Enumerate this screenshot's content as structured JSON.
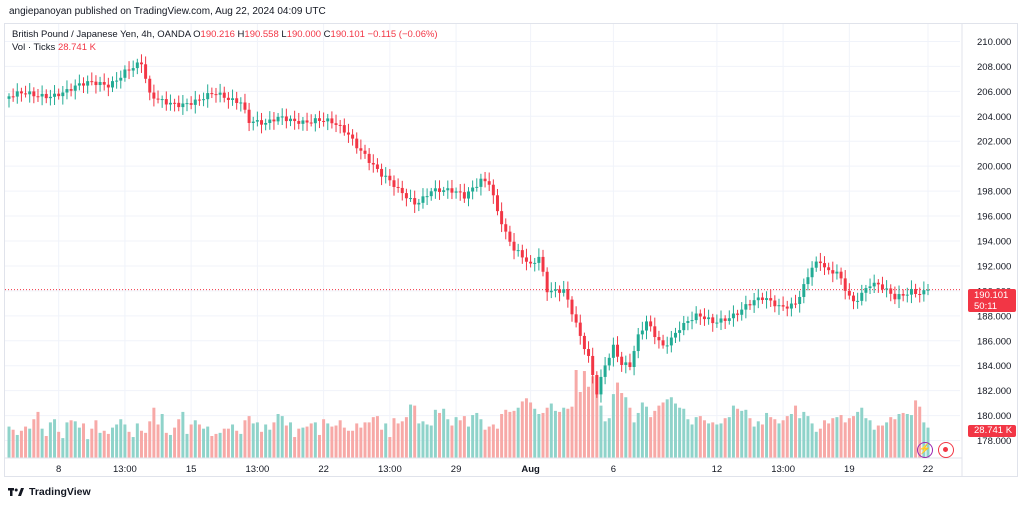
{
  "header": {
    "published": "angiepanoyan published on TradingView.com, Aug 22, 2024 04:09 UTC"
  },
  "legend": {
    "symbol": "British Pound / Japanese Yen, 4h, OANDA",
    "o_label": "O",
    "o_value": "190.216",
    "h_label": "H",
    "h_value": "190.558",
    "l_label": "L",
    "l_value": "190.000",
    "c_label": "C",
    "c_value": "190.101",
    "change": "−0.115 (−0.06%)",
    "vol_label": "Vol · Ticks",
    "vol_value": "28.741 K"
  },
  "price_tag": {
    "price": "190.101",
    "countdown": "50:11"
  },
  "vol_tag": "28.741 K",
  "footer": {
    "brand": "TradingView"
  },
  "colors": {
    "up": "#22ab94",
    "down": "#f23645",
    "vol_up": "#8fd3ca",
    "vol_down": "#f7a9a7",
    "grid": "#f0f3fa",
    "axis_text": "#131722"
  },
  "chart_data": {
    "type": "candlestick",
    "ylim": [
      176.6,
      211.4
    ],
    "y_ticks": [
      "178.000",
      "180.000",
      "182.000",
      "184.000",
      "186.000",
      "188.000",
      "190.000",
      "192.000",
      "194.000",
      "196.000",
      "198.000",
      "200.000",
      "202.000",
      "204.000",
      "206.000",
      "208.000",
      "210.000"
    ],
    "x_ticks": [
      {
        "label": "8",
        "idx": 12,
        "bold": false
      },
      {
        "label": "13:00",
        "idx": 28,
        "bold": false
      },
      {
        "label": "15",
        "idx": 44,
        "bold": false
      },
      {
        "label": "13:00",
        "idx": 60,
        "bold": false
      },
      {
        "label": "22",
        "idx": 76,
        "bold": false
      },
      {
        "label": "13:00",
        "idx": 92,
        "bold": false
      },
      {
        "label": "29",
        "idx": 108,
        "bold": false
      },
      {
        "label": "Aug",
        "idx": 126,
        "bold": true
      },
      {
        "label": "6",
        "idx": 146,
        "bold": false
      },
      {
        "label": "12",
        "idx": 171,
        "bold": false
      },
      {
        "label": "13:00",
        "idx": 187,
        "bold": false
      },
      {
        "label": "19",
        "idx": 203,
        "bold": false
      },
      {
        "label": "22",
        "idx": 222,
        "bold": false
      }
    ],
    "last_price": 190.101,
    "anchors": [
      [
        0,
        205.6
      ],
      [
        6,
        205.5
      ],
      [
        12,
        206.1
      ],
      [
        18,
        206.3
      ],
      [
        24,
        206.7
      ],
      [
        28,
        207.8
      ],
      [
        32,
        208.0
      ],
      [
        34,
        205.4
      ],
      [
        36,
        205.2
      ],
      [
        40,
        205.3
      ],
      [
        46,
        205.1
      ],
      [
        50,
        205.6
      ],
      [
        56,
        205.5
      ],
      [
        58,
        203.8
      ],
      [
        62,
        203.1
      ],
      [
        66,
        203.8
      ],
      [
        70,
        203.9
      ],
      [
        74,
        203.7
      ],
      [
        78,
        203.2
      ],
      [
        82,
        202.6
      ],
      [
        86,
        201.2
      ],
      [
        90,
        199.2
      ],
      [
        94,
        197.8
      ],
      [
        98,
        197.2
      ],
      [
        102,
        198.3
      ],
      [
        106,
        197.8
      ],
      [
        110,
        197.4
      ],
      [
        114,
        199.2
      ],
      [
        116,
        199.0
      ],
      [
        118,
        196.5
      ],
      [
        120,
        194.4
      ],
      [
        122,
        193.0
      ],
      [
        126,
        192.0
      ],
      [
        128,
        193.0
      ],
      [
        130,
        190.4
      ],
      [
        134,
        190.0
      ],
      [
        136,
        188.0
      ],
      [
        138,
        186.0
      ],
      [
        140,
        184.5
      ],
      [
        142,
        182.0
      ],
      [
        144,
        184.4
      ],
      [
        146,
        185.8
      ],
      [
        148,
        184.2
      ],
      [
        150,
        183.8
      ],
      [
        152,
        186.0
      ],
      [
        154,
        187.3
      ],
      [
        156,
        186.5
      ],
      [
        158,
        185.8
      ],
      [
        160,
        186.5
      ],
      [
        162,
        187.2
      ],
      [
        166,
        187.7
      ],
      [
        170,
        187.4
      ],
      [
        174,
        188.2
      ],
      [
        178,
        188.8
      ],
      [
        182,
        189.1
      ],
      [
        186,
        188.8
      ],
      [
        190,
        189.3
      ],
      [
        192,
        190.5
      ],
      [
        194,
        191.8
      ],
      [
        196,
        192.0
      ],
      [
        198,
        191.2
      ],
      [
        200,
        191.5
      ],
      [
        202,
        190.4
      ],
      [
        204,
        189.4
      ],
      [
        206,
        190.0
      ],
      [
        208,
        190.5
      ],
      [
        210,
        190.2
      ],
      [
        212,
        189.7
      ],
      [
        214,
        189.3
      ],
      [
        216,
        189.8
      ],
      [
        218,
        190.3
      ],
      [
        220,
        190.1
      ],
      [
        222,
        190.1
      ]
    ],
    "volume": [
      30,
      27,
      22,
      26,
      30,
      28,
      37,
      44,
      28,
      21,
      34,
      37,
      25,
      19,
      34,
      36,
      35,
      29,
      33,
      18,
      28,
      36,
      24,
      26,
      23,
      29,
      32,
      37,
      32,
      25,
      20,
      33,
      26,
      24,
      35,
      48,
      32,
      42,
      24,
      22,
      29,
      37,
      44,
      23,
      32,
      36,
      32,
      28,
      30,
      21,
      23,
      24,
      28,
      28,
      32,
      26,
      23,
      36,
      40,
      33,
      34,
      25,
      32,
      27,
      34,
      42,
      40,
      31,
      34,
      20,
      28,
      29,
      30,
      33,
      34,
      22,
      37,
      33,
      30,
      31,
      36,
      29,
      26,
      26,
      33,
      29,
      34,
      34,
      39,
      40,
      27,
      33,
      20,
      38,
      33,
      35,
      39,
      51,
      50,
      33,
      35,
      32,
      31,
      46,
      43,
      47,
      37,
      31,
      39,
      36,
      40,
      30,
      41,
      43,
      37,
      27,
      30,
      32,
      28,
      42,
      46,
      44,
      45,
      48,
      54,
      57,
      53,
      47,
      42,
      43,
      48,
      52,
      45,
      44,
      48,
      47,
      49,
      84,
      63,
      83,
      68,
      78,
      79,
      50,
      35,
      38,
      61,
      72,
      62,
      58,
      48,
      34,
      43,
      53,
      49,
      39,
      45,
      50,
      53,
      56,
      58,
      52,
      48,
      47,
      37,
      32,
      39,
      40,
      36,
      33,
      34,
      32,
      33,
      38,
      39,
      50,
      47,
      45,
      46,
      38,
      30,
      35,
      32,
      43,
      39,
      37,
      33,
      36,
      40,
      42,
      50,
      38,
      44,
      40,
      33,
      25,
      28,
      36,
      33,
      38,
      39,
      41,
      34,
      38,
      40,
      44,
      48,
      38,
      36,
      27,
      31,
      31,
      34,
      39,
      37,
      42,
      43,
      42,
      41,
      55,
      49,
      34,
      29
    ]
  }
}
